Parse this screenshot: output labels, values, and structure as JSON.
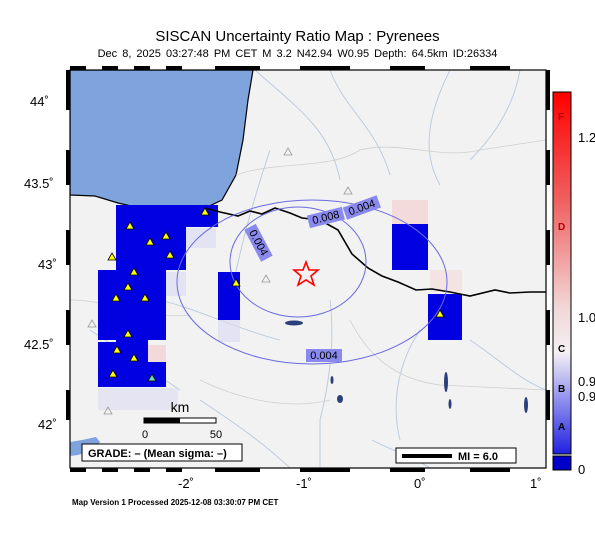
{
  "map": {
    "title": "SISCAN Uncertainty Ratio Map : Pyrenees",
    "subtitle": "Dec  8, 2025 03:27:48 PM CET    M 3.2    N42.94 W0.95    Depth: 64.5km    ID:26334",
    "footer": "Map Version 1 Processed 2025-12-08 03:30:07 PM CET",
    "lat_labels": [
      "44˚",
      "43.5˚",
      "43˚",
      "42.5˚",
      "42˚"
    ],
    "lon_labels": [
      "-2˚",
      "-1˚",
      "0˚",
      "1˚"
    ],
    "contours": [
      "0.004",
      "0.008",
      "0.004",
      "0.004"
    ],
    "scale_bar": {
      "unit": "km",
      "ticks": [
        "0",
        "50"
      ]
    },
    "grade_box": "GRADE: – (Mean sigma: –)",
    "mi_box": "MI = 6.0"
  },
  "colorbar": {
    "letters": [
      "F",
      "D",
      "C",
      "B",
      "A"
    ],
    "values": [
      "1.2",
      "1.0",
      "0.9",
      "0.9",
      "0"
    ]
  },
  "colors": {
    "sea": "#7fa3dd",
    "land": "#f2f2f2",
    "high_cell": "#0000e0",
    "epicenter": "#ff0000",
    "station": "#ffff00",
    "contour": "#6a6adf"
  }
}
